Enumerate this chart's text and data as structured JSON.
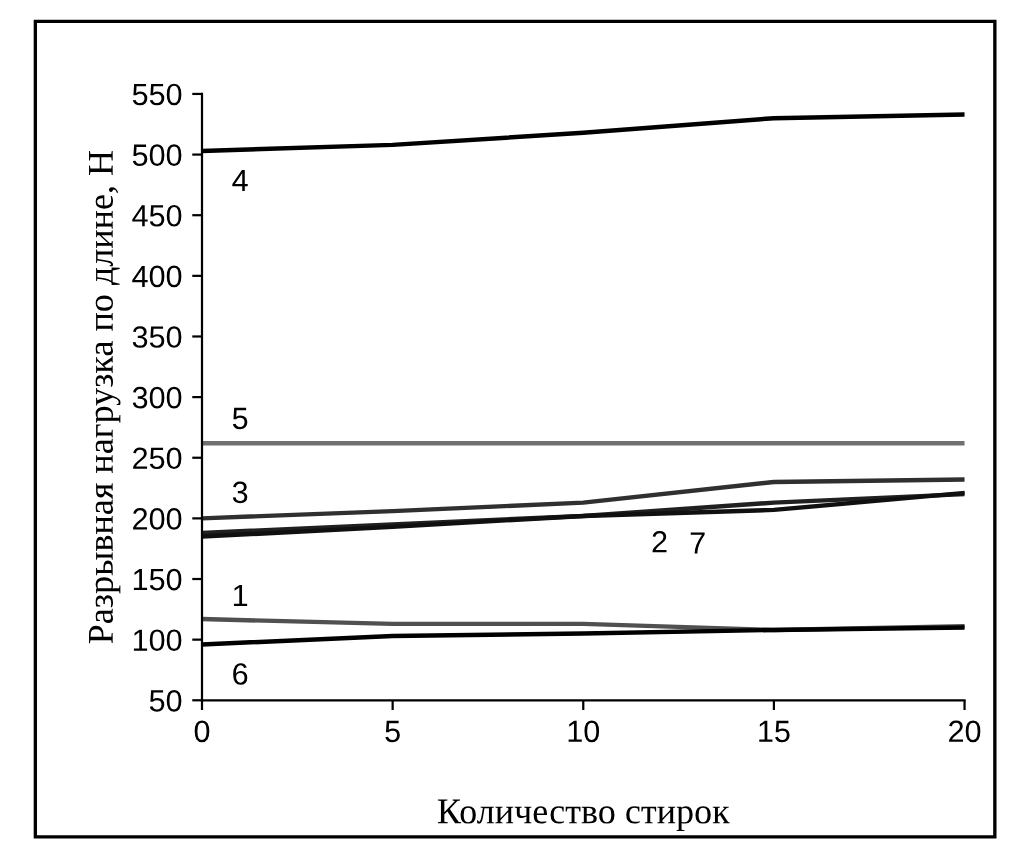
{
  "chart_data": {
    "type": "line",
    "xlabel": "Количество стирок",
    "ylabel": "Разрывная нагрузка по длине, Н",
    "x": [
      0,
      5,
      10,
      15,
      20
    ],
    "series": [
      {
        "color": "#000000",
        "values": [
          503,
          508,
          518,
          530,
          533
        ]
      },
      {
        "color": "#707070",
        "values": [
          262,
          262,
          262,
          262,
          262
        ]
      },
      {
        "color": "#303030",
        "values": [
          200,
          206,
          213,
          230,
          232
        ]
      },
      {
        "color": "#202020",
        "values": [
          188,
          195,
          202,
          213,
          220
        ]
      },
      {
        "color": "#101010",
        "values": [
          185,
          193,
          202,
          207,
          221
        ]
      },
      {
        "color": "#505050",
        "values": [
          117,
          113,
          113,
          108,
          111
        ]
      },
      {
        "color": "#000000",
        "values": [
          96,
          103,
          105,
          108,
          110
        ]
      }
    ],
    "annotations": [
      {
        "text": "4",
        "x": 1,
        "y": 504
      },
      {
        "text": "5",
        "x": 1,
        "y": 262
      },
      {
        "text": "3",
        "x": 1,
        "y": 201
      },
      {
        "text": "2",
        "x": 12,
        "y": 206
      },
      {
        "text": "7",
        "x": 13,
        "y": 205
      },
      {
        "text": "1",
        "x": 1,
        "y": 116
      },
      {
        "text": "6",
        "x": 1,
        "y": 97
      }
    ],
    "xlim": [
      0,
      20
    ],
    "xticks": [
      0,
      5,
      10,
      15,
      20
    ],
    "ylim": [
      50,
      550
    ],
    "yticks": [
      50,
      100,
      150,
      200,
      250,
      300,
      350,
      400,
      450,
      500,
      550
    ],
    "grid": false,
    "legend": false
  }
}
